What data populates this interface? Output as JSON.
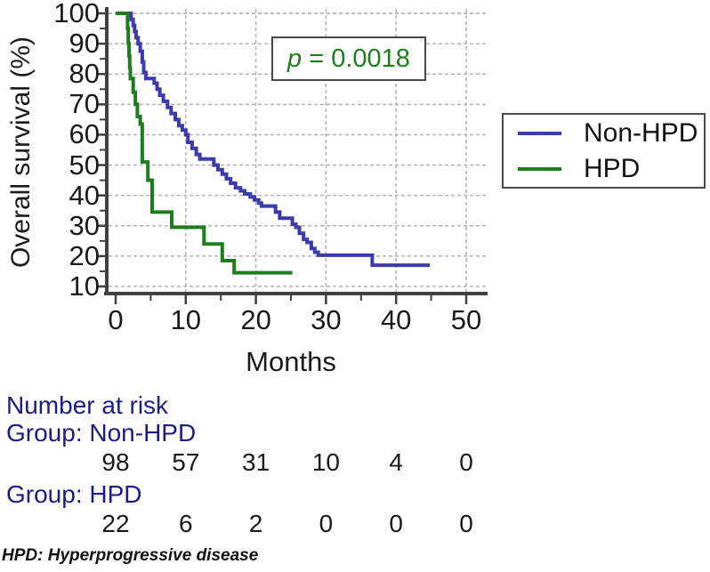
{
  "figure": {
    "y_axis_title": "Overall survival (%)",
    "x_axis_title": "Months",
    "p_value_italic": "p",
    "p_value_rest": " = 0.0018",
    "legend": [
      {
        "label": "Non-HPD",
        "color": "#3b3bab"
      },
      {
        "label": "HPD",
        "color": "#1e7e1e"
      }
    ],
    "risk_header": "Number at risk",
    "risk_groups": [
      {
        "label": "Group: Non-HPD",
        "counts": [
          "98",
          "57",
          "31",
          "10",
          "4",
          "0"
        ]
      },
      {
        "label": "Group: HPD",
        "counts": [
          "22",
          "6",
          "2",
          "0",
          "0",
          "0"
        ]
      }
    ],
    "footnote": "HPD: Hyperprogressive disease"
  },
  "chart_data": {
    "type": "line",
    "subtype": "kaplan-meier-step",
    "title": "",
    "xlabel": "Months",
    "ylabel": "Overall survival (%)",
    "xlim": [
      0,
      50
    ],
    "ylim": [
      10,
      100
    ],
    "xticks": [
      0,
      10,
      20,
      30,
      40,
      50
    ],
    "yticks": [
      100,
      90,
      80,
      70,
      60,
      50,
      40,
      30,
      20,
      10
    ],
    "xticks_minor": [
      5,
      15,
      25,
      35,
      45
    ],
    "yticks_minor": [
      95,
      85,
      75,
      65,
      55,
      45,
      35,
      25,
      15
    ],
    "grid": "dashed, at every 10 units both axes",
    "annotation": "p = 0.0018",
    "annotation_color": "#1e7e1e",
    "legend_position": "outside right",
    "axis_color": "#404040",
    "grid_color": "#b3b3b3",
    "series": [
      {
        "name": "Non-HPD",
        "color": "#3b3bab",
        "step_points": [
          [
            0,
            100
          ],
          [
            2.2,
            98
          ],
          [
            2.5,
            96
          ],
          [
            2.7,
            94
          ],
          [
            2.9,
            92
          ],
          [
            3.2,
            90
          ],
          [
            3.5,
            87.5
          ],
          [
            3.8,
            84
          ],
          [
            4.0,
            80.5
          ],
          [
            4.3,
            78.5
          ],
          [
            5.5,
            77
          ],
          [
            5.9,
            75
          ],
          [
            6.3,
            73
          ],
          [
            6.8,
            71
          ],
          [
            7.4,
            69
          ],
          [
            7.9,
            67
          ],
          [
            8.5,
            65
          ],
          [
            9.0,
            63
          ],
          [
            9.5,
            61.5
          ],
          [
            10.0,
            60
          ],
          [
            10.3,
            57.5
          ],
          [
            10.9,
            55.5
          ],
          [
            11.5,
            53.5
          ],
          [
            12.0,
            52
          ],
          [
            14.0,
            50
          ],
          [
            14.6,
            48.5
          ],
          [
            15.2,
            47
          ],
          [
            15.8,
            45.5
          ],
          [
            16.4,
            44
          ],
          [
            17.1,
            42.5
          ],
          [
            17.8,
            41.5
          ],
          [
            18.4,
            40.5
          ],
          [
            19.2,
            39.5
          ],
          [
            19.8,
            38.5
          ],
          [
            20.4,
            37.5
          ],
          [
            20.8,
            36.5
          ],
          [
            22.8,
            34.5
          ],
          [
            23.4,
            32.5
          ],
          [
            25.2,
            30.5
          ],
          [
            25.7,
            29.5
          ],
          [
            26.2,
            27.5
          ],
          [
            26.8,
            25.5
          ],
          [
            27.3,
            24.5
          ],
          [
            27.9,
            22.5
          ],
          [
            28.4,
            21.3
          ],
          [
            28.9,
            20.3
          ],
          [
            36.6,
            17
          ],
          [
            44.8,
            17
          ]
        ]
      },
      {
        "name": "HPD",
        "color": "#1e7e1e",
        "step_points": [
          [
            0,
            100
          ],
          [
            1.7,
            95
          ],
          [
            1.8,
            90
          ],
          [
            1.9,
            86
          ],
          [
            2.0,
            82
          ],
          [
            2.1,
            78.5
          ],
          [
            2.5,
            74
          ],
          [
            2.8,
            70
          ],
          [
            3.1,
            66
          ],
          [
            3.5,
            63.5
          ],
          [
            3.8,
            51
          ],
          [
            4.6,
            45
          ],
          [
            5.2,
            34.5
          ],
          [
            8.0,
            29.5
          ],
          [
            12.6,
            24
          ],
          [
            15.2,
            18.5
          ],
          [
            16.9,
            14.5
          ],
          [
            25.2,
            14.5
          ]
        ]
      }
    ],
    "number_at_risk": {
      "times": [
        0,
        10,
        20,
        30,
        40,
        50
      ],
      "groups": [
        {
          "name": "Non-HPD",
          "counts": [
            98,
            57,
            31,
            10,
            4,
            0
          ]
        },
        {
          "name": "HPD",
          "counts": [
            22,
            6,
            2,
            0,
            0,
            0
          ]
        }
      ]
    }
  }
}
